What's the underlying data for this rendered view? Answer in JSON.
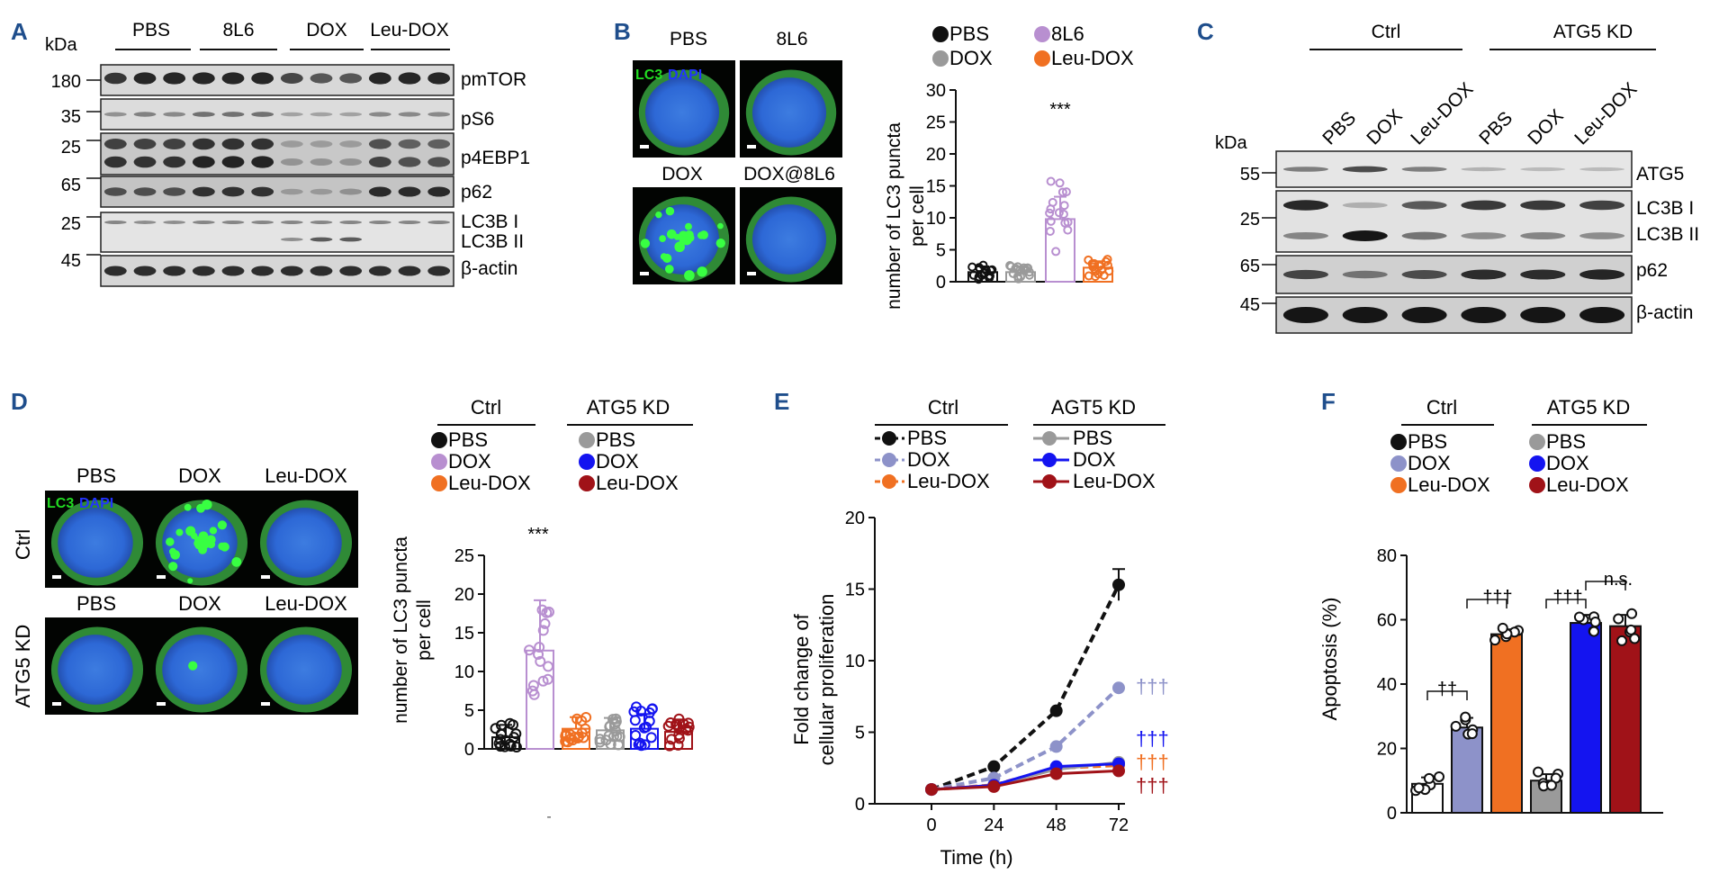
{
  "panels": {
    "A": {
      "letter": "A",
      "kda": "kDa",
      "groups": [
        "PBS",
        "8L6",
        "DOX",
        "Leu-DOX"
      ],
      "mw": [
        "180",
        "35",
        "25",
        "65",
        "25",
        "45"
      ],
      "bands": [
        "pmTOR",
        "pS6",
        "p4EBP1",
        "p62",
        "LC3B I",
        "LC3B II",
        "β-actin"
      ]
    },
    "B": {
      "letter": "B",
      "images": [
        "PBS",
        "8L6",
        "DOX",
        "DOX@8L6"
      ],
      "stain_lc3": "LC3",
      "stain_dapi": "DAPI",
      "legend": [
        "PBS",
        "8L6",
        "DOX",
        "Leu-DOX"
      ],
      "sig": "***",
      "ylabel1": "number of LC3 puncta",
      "ylabel2": "per cell",
      "yticks": [
        "0",
        "5",
        "10",
        "15",
        "20",
        "25",
        "30"
      ]
    },
    "C": {
      "letter": "C",
      "group_ctrl": "Ctrl",
      "group_kd": "ATG5 KD",
      "lanes": [
        "PBS",
        "DOX",
        "Leu-DOX",
        "PBS",
        "DOX",
        "Leu-DOX"
      ],
      "kda": "kDa",
      "mw": [
        "55",
        "25",
        "65",
        "45"
      ],
      "bands": [
        "ATG5",
        "LC3B I",
        "LC3B II",
        "p62",
        "β-actin"
      ]
    },
    "D": {
      "letter": "D",
      "cols_top": [
        "PBS",
        "DOX",
        "Leu-DOX"
      ],
      "cols_bottom": [
        "PBS",
        "DOX",
        "Leu-DOX"
      ],
      "row_ctrl": "Ctrl",
      "row_kd": "ATG5 KD",
      "stain_lc3": "LC3",
      "stain_dapi": "DAPI",
      "group_ctrl": "Ctrl",
      "group_kd": "ATG5 KD",
      "legend_ctrl": [
        "PBS",
        "DOX",
        "Leu-DOX"
      ],
      "legend_kd": [
        "PBS",
        "DOX",
        "Leu-DOX"
      ],
      "sig": "***",
      "ylabel1": "number of LC3 puncta",
      "ylabel2": "per cell",
      "yticks": [
        "0",
        "5",
        "10",
        "15",
        "20",
        "25"
      ],
      "xmark": "-"
    },
    "E": {
      "letter": "E",
      "group_ctrl": "Ctrl",
      "group_kd": "AGT5 KD",
      "legend_ctrl": [
        "PBS",
        "DOX",
        "Leu-DOX"
      ],
      "legend_kd": [
        "PBS",
        "DOX",
        "Leu-DOX"
      ],
      "ylabel1": "Fold change of",
      "ylabel2": "cellular proliferation",
      "xlabel": "Time (h)",
      "yticks": [
        "0",
        "5",
        "10",
        "15",
        "20"
      ],
      "xticks": [
        "0",
        "24",
        "48",
        "72"
      ],
      "daggers": [
        "†††",
        "†††",
        "†††",
        "†††"
      ]
    },
    "F": {
      "letter": "F",
      "group_ctrl": "Ctrl",
      "group_kd": "ATG5 KD",
      "legend_ctrl": [
        "PBS",
        "DOX",
        "Leu-DOX"
      ],
      "legend_kd": [
        "PBS",
        "DOX",
        "Leu-DOX"
      ],
      "ylabel": "Apoptosis (%)",
      "yticks": [
        "0",
        "20",
        "40",
        "60",
        "80"
      ],
      "sig_1": "††",
      "sig_2": "†††",
      "sig_3": "†††",
      "sig_4": "n.s."
    }
  },
  "colors": {
    "black": "#111111",
    "purple": "#b88fd0",
    "gray": "#9a9a9a",
    "orange": "#f07022",
    "lavender": "#8d92c9",
    "blue": "#1414f0",
    "darkred": "#a01218",
    "label_blue": "#1f4e8c",
    "lc3_green": "#22dd22",
    "dapi_blue": "#2233ff"
  },
  "chart_data": [
    {
      "type": "bar",
      "title": "Panel B",
      "categories": [
        "PBS",
        "8L6",
        "DOX",
        "Leu-DOX"
      ],
      "values": [
        1.5,
        1.5,
        9.8,
        2.2
      ],
      "errors": [
        0.9,
        0.9,
        3.5,
        1.0
      ],
      "xlabel": "",
      "ylabel": "number of LC3 puncta per cell",
      "ylim": [
        0,
        30
      ]
    },
    {
      "type": "bar",
      "title": "Panel D",
      "categories": [
        "Ctrl PBS",
        "Ctrl DOX",
        "Ctrl Leu-DOX",
        "ATG5 KD PBS",
        "ATG5 KD DOX",
        "ATG5 KD Leu-DOX"
      ],
      "values": [
        1.5,
        12.7,
        2.6,
        2.4,
        2.6,
        2.2
      ],
      "errors": [
        1.6,
        6.5,
        1.5,
        1.6,
        1.9,
        1.6
      ],
      "xlabel": "",
      "ylabel": "number of LC3 puncta per cell",
      "ylim": [
        0,
        25
      ]
    },
    {
      "type": "line",
      "title": "Panel E",
      "x": [
        0,
        24,
        48,
        72
      ],
      "series": [
        {
          "name": "Ctrl PBS",
          "values": [
            1.0,
            2.6,
            6.5,
            15.3
          ]
        },
        {
          "name": "Ctrl DOX",
          "values": [
            1.0,
            1.8,
            4.0,
            8.1
          ]
        },
        {
          "name": "Ctrl Leu-DOX",
          "values": [
            1.0,
            1.3,
            2.5,
            2.7
          ]
        },
        {
          "name": "AGT5 KD PBS",
          "values": [
            1.0,
            1.3,
            2.4,
            2.9
          ]
        },
        {
          "name": "AGT5 KD DOX",
          "values": [
            1.0,
            1.3,
            2.6,
            2.8
          ]
        },
        {
          "name": "AGT5 KD Leu-DOX",
          "values": [
            1.0,
            1.2,
            2.1,
            2.3
          ]
        }
      ],
      "xlabel": "Time (h)",
      "ylabel": "Fold change of cellular proliferation",
      "ylim": [
        0,
        20
      ]
    },
    {
      "type": "bar",
      "title": "Panel F",
      "categories": [
        "Ctrl PBS",
        "Ctrl DOX",
        "Ctrl Leu-DOX",
        "ATG5 KD PBS",
        "ATG5 KD DOX",
        "ATG5 KD Leu-DOX"
      ],
      "values": [
        9,
        26.5,
        55.5,
        10,
        59,
        58
      ],
      "errors": [
        2,
        3,
        1.5,
        2,
        2.5,
        3.5
      ],
      "xlabel": "",
      "ylabel": "Apoptosis (%)",
      "ylim": [
        0,
        80
      ]
    }
  ]
}
